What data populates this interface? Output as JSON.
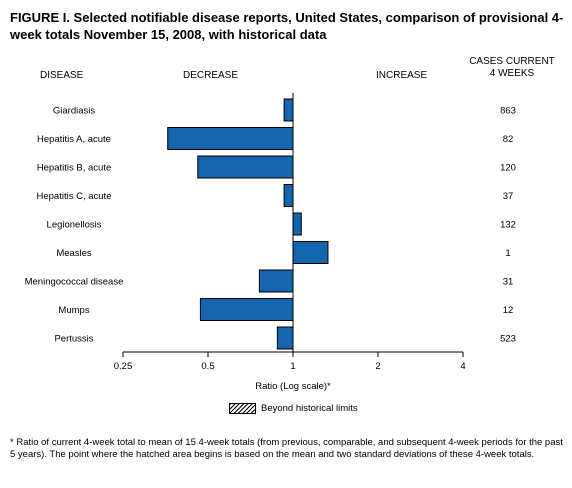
{
  "title": "FIGURE I. Selected notifiable disease reports, United States, comparison of provisional 4-week totals November 15, 2008, with historical data",
  "headers": {
    "disease": "DISEASE",
    "decrease": "DECREASE",
    "increase": "INCREASE",
    "cases": "CASES CURRENT\n4 WEEKS"
  },
  "legend": {
    "label": "Beyond historical limits"
  },
  "footnote": "* Ratio of current 4-week total to mean of 15 4-week totals (from previous, comparable, and subsequent 4-week periods for the past 5 years). The point where the hatched area begins is based on the mean and two standard deviations of these 4-week totals.",
  "colors": {
    "bar": "#1565ae",
    "bar_edge": "#000000"
  },
  "chart_data": {
    "type": "bar",
    "orientation": "horizontal",
    "xscale": "log2",
    "xlabel": "Ratio (Log scale)*",
    "xlim": [
      0.25,
      4
    ],
    "xticks": [
      "0.25",
      "0.5",
      "1",
      "2",
      "4"
    ],
    "baseline": 1,
    "categories": [
      "Giardiasis",
      "Hepatitis A, acute",
      "Hepatitis B, acute",
      "Hepatitis C, acute",
      "Legionellosis",
      "Measles",
      "Meningococcal disease",
      "Mumps",
      "Pertussis"
    ],
    "values": [
      0.93,
      0.36,
      0.46,
      0.93,
      1.07,
      1.33,
      0.76,
      0.47,
      0.88
    ],
    "cases": [
      "863",
      "82",
      "120",
      "37",
      "132",
      "1",
      "31",
      "12",
      "523"
    ]
  }
}
